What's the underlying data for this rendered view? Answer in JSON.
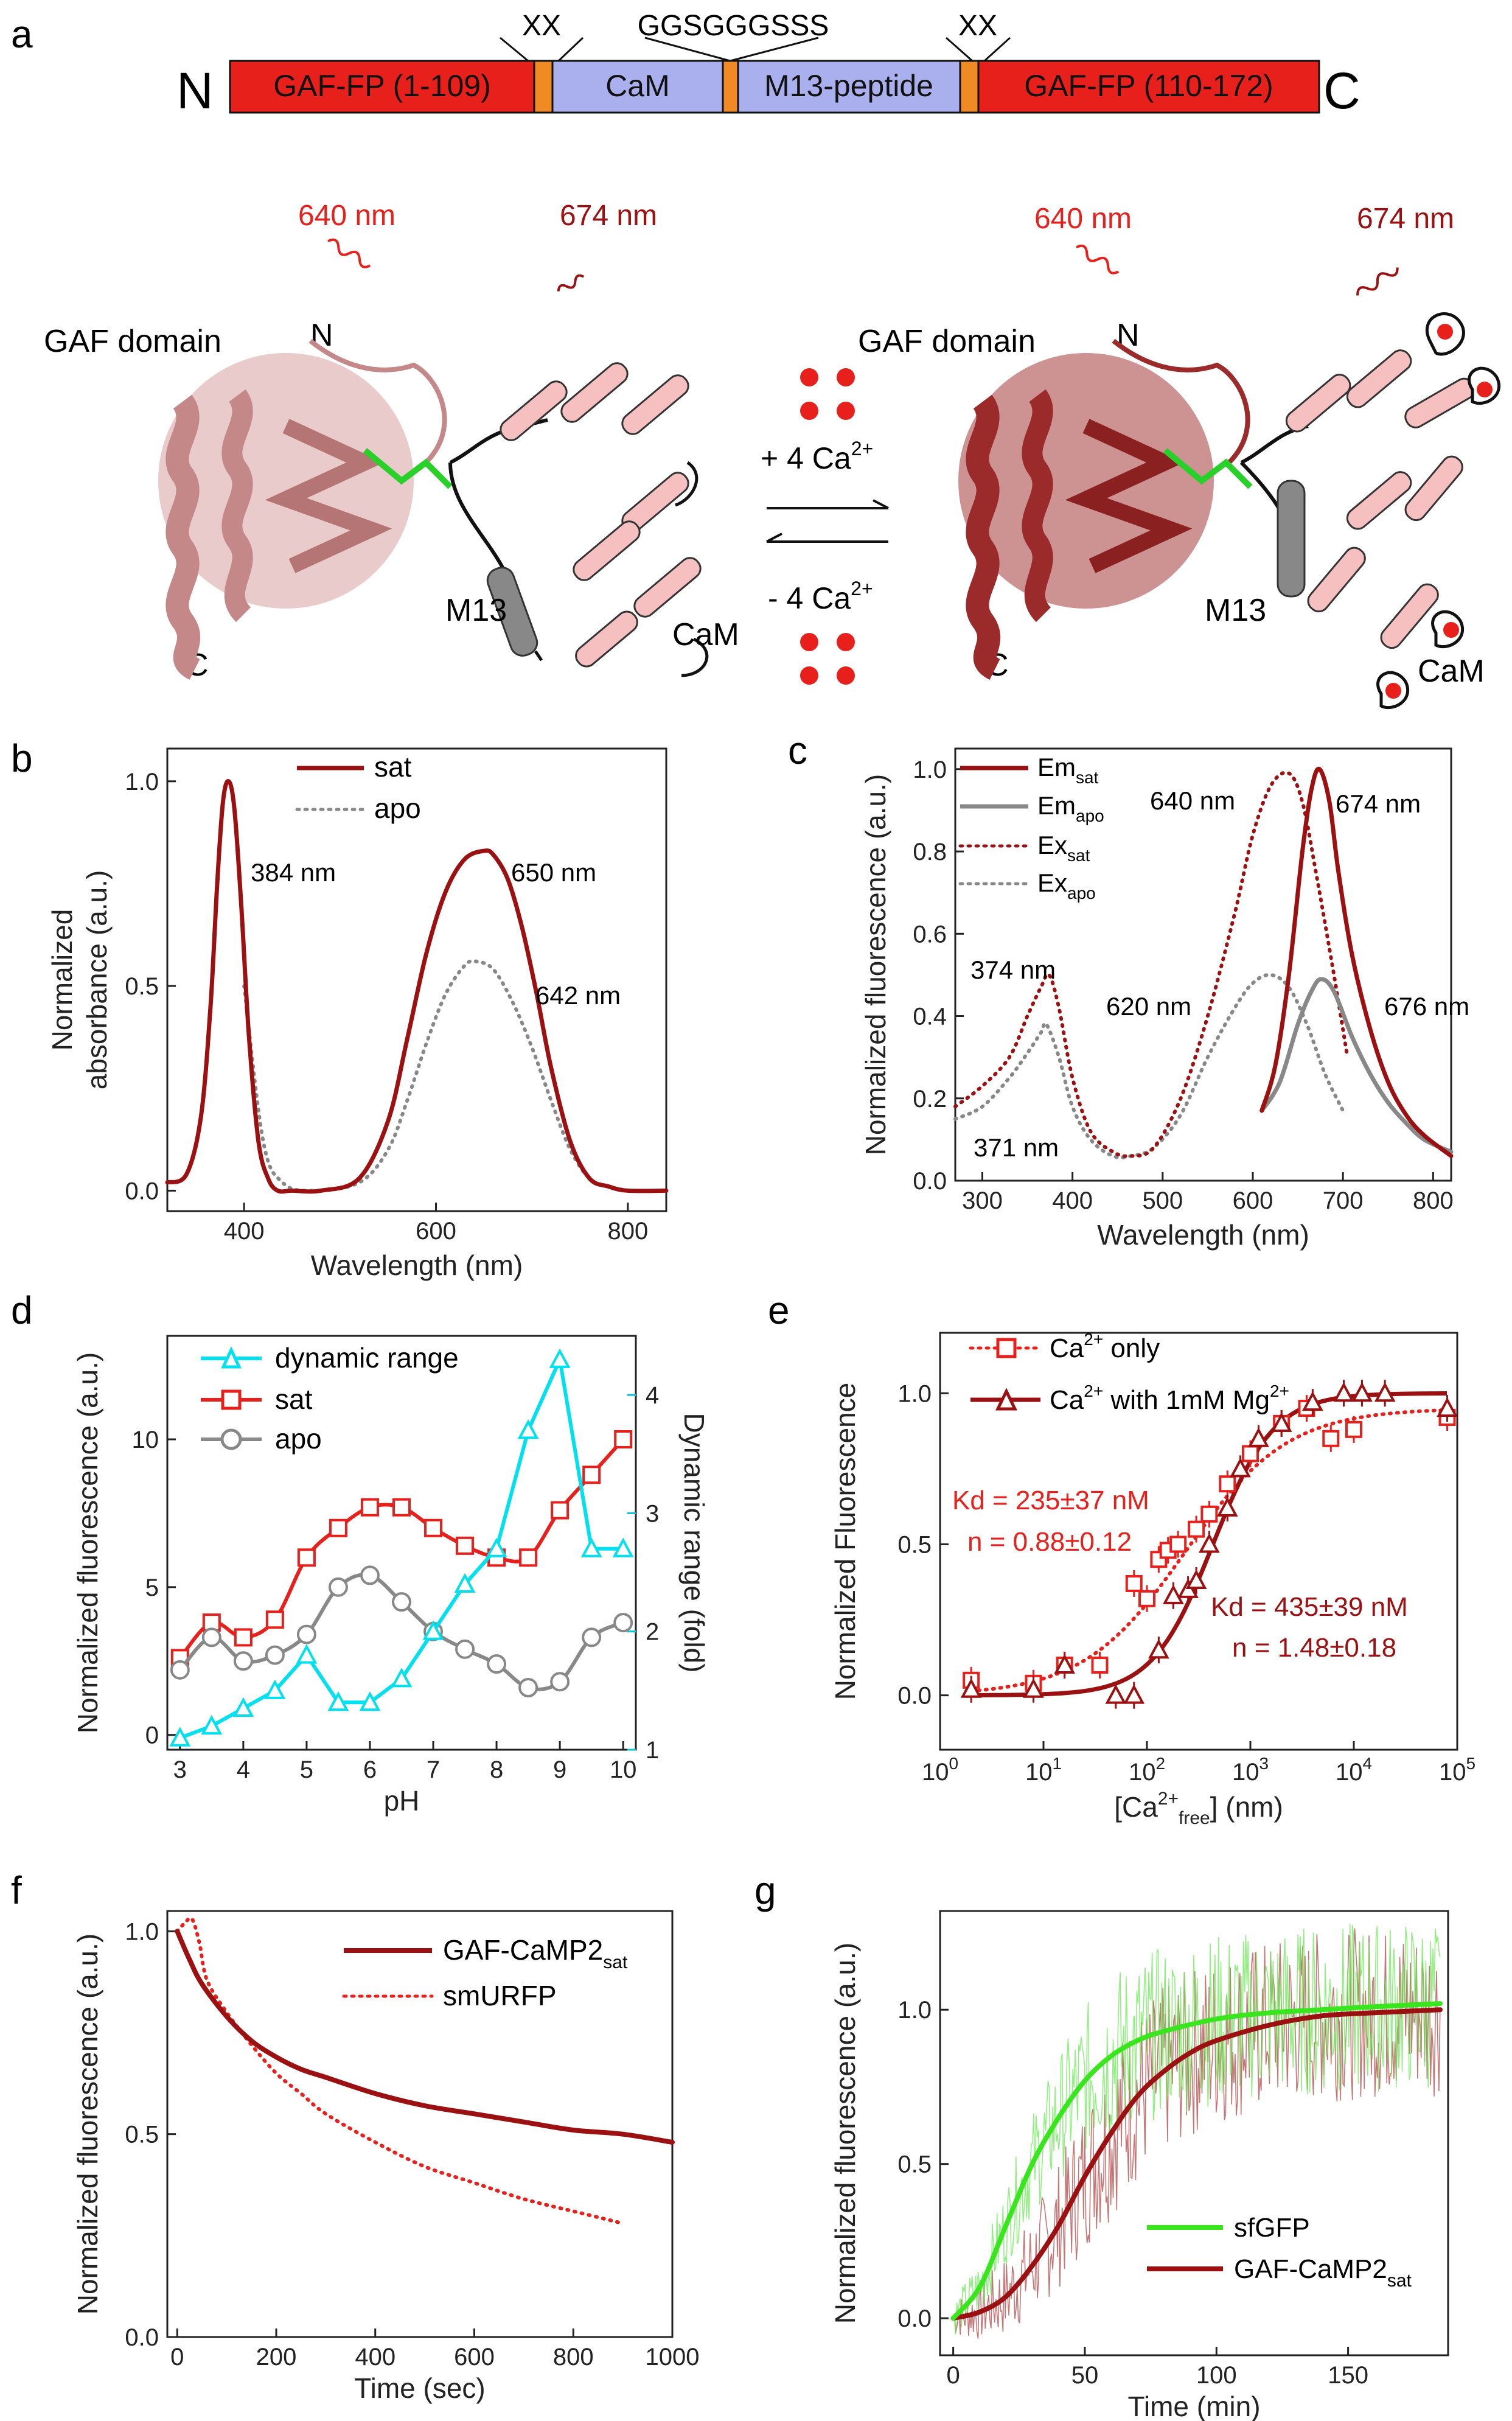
{
  "panel_labels": {
    "a": "a",
    "b": "b",
    "c": "c",
    "d": "d",
    "e": "e",
    "f": "f",
    "g": "g"
  },
  "construct": {
    "n_term": "N",
    "c_term": "C",
    "seg1": "GAF-FP (1-109)",
    "seg2": "CaM",
    "seg3": "M13-peptide",
    "seg4": "GAF-FP (110-172)",
    "linker_left": "XX",
    "linker_mid": "GGSGGGSSS",
    "linker_right": "XX"
  },
  "structure": {
    "exc_left": "640 nm",
    "em_left": "674 nm",
    "exc_right": "640 nm",
    "em_right": "674 nm",
    "gaf_left": "GAF domain",
    "gaf_right": "GAF domain",
    "n_left": "N",
    "n_right": "N",
    "c_left": "C",
    "c_right": "C",
    "m13_left": "M13",
    "m13_right": "M13",
    "cam_left": "CaM",
    "cam_right": "CaM",
    "plus_ca": "+ 4 Ca",
    "minus_ca": "- 4 Ca",
    "ca_sup": "2+"
  },
  "chart_data": [
    {
      "panel": "b",
      "type": "line",
      "xlabel": "Wavelength (nm)",
      "ylabel_line1": "Normalized",
      "ylabel_line2": "absorbance (a.u.)",
      "xlim": [
        320,
        840
      ],
      "ylim": [
        -0.05,
        1.08
      ],
      "xticks": [
        "400",
        "600",
        "800"
      ],
      "yticks": [
        "0.0",
        "0.5",
        "1.0"
      ],
      "legend": [
        "sat",
        "apo"
      ],
      "annotations": [
        "384 nm",
        "650 nm",
        "642 nm"
      ],
      "series": [
        {
          "name": "sat",
          "x": [
            320,
            340,
            355,
            365,
            372,
            378,
            384,
            390,
            397,
            405,
            415,
            425,
            435,
            450,
            480,
            520,
            550,
            570,
            590,
            610,
            630,
            650,
            660,
            675,
            690,
            705,
            720,
            740,
            760,
            780,
            800,
            840
          ],
          "y": [
            0.02,
            0.04,
            0.18,
            0.45,
            0.75,
            0.95,
            1.0,
            0.93,
            0.7,
            0.38,
            0.12,
            0.03,
            0.0,
            0.0,
            0.0,
            0.03,
            0.17,
            0.37,
            0.58,
            0.73,
            0.81,
            0.83,
            0.82,
            0.76,
            0.64,
            0.48,
            0.3,
            0.12,
            0.03,
            0.01,
            0.0,
            0.0
          ]
        },
        {
          "name": "apo",
          "x": [
            400,
            420,
            440,
            470,
            520,
            550,
            570,
            590,
            610,
            630,
            642,
            660,
            680,
            700,
            720,
            740,
            760,
            780,
            800
          ],
          "y": [
            0.5,
            0.12,
            0.02,
            0.0,
            0.02,
            0.1,
            0.22,
            0.36,
            0.48,
            0.55,
            0.56,
            0.54,
            0.46,
            0.35,
            0.22,
            0.1,
            0.03,
            0.01,
            0.0
          ]
        }
      ]
    },
    {
      "panel": "c",
      "type": "line",
      "xlabel": "Wavelength (nm)",
      "ylabel": "Normalized fluorescence (a.u.)",
      "xlim": [
        270,
        820
      ],
      "ylim": [
        0,
        1.05
      ],
      "xticks": [
        "300",
        "400",
        "500",
        "600",
        "700",
        "800"
      ],
      "yticks": [
        "0.0",
        "0.2",
        "0.4",
        "0.6",
        "0.8",
        "1.0"
      ],
      "legend": [
        "Em",
        "Em",
        "Ex",
        "Ex"
      ],
      "legend_subs": [
        "sat",
        "apo",
        "sat",
        "apo"
      ],
      "annotations": [
        "640 nm",
        "674 nm",
        "374 nm",
        "620 nm",
        "676 nm",
        "371 nm"
      ],
      "series": [
        {
          "name": "Em_sat",
          "x": [
            610,
            625,
            640,
            655,
            665,
            674,
            685,
            695,
            710,
            730,
            750,
            770,
            790,
            820
          ],
          "y": [
            0.17,
            0.28,
            0.5,
            0.8,
            0.95,
            1.0,
            0.92,
            0.75,
            0.55,
            0.37,
            0.24,
            0.16,
            0.11,
            0.06
          ]
        },
        {
          "name": "Em_apo",
          "x": [
            610,
            630,
            650,
            665,
            676,
            690,
            710,
            730,
            750,
            770,
            790,
            820
          ],
          "y": [
            0.17,
            0.24,
            0.38,
            0.46,
            0.49,
            0.46,
            0.35,
            0.26,
            0.19,
            0.14,
            0.1,
            0.07
          ]
        },
        {
          "name": "Ex_sat",
          "x": [
            270,
            300,
            330,
            350,
            365,
            374,
            385,
            400,
            420,
            445,
            465,
            490,
            520,
            550,
            580,
            600,
            620,
            640,
            655,
            670,
            690,
            705
          ],
          "y": [
            0.18,
            0.23,
            0.3,
            0.4,
            0.47,
            0.5,
            0.42,
            0.25,
            0.12,
            0.07,
            0.06,
            0.08,
            0.2,
            0.4,
            0.65,
            0.84,
            0.96,
            0.99,
            0.92,
            0.75,
            0.5,
            0.3
          ]
        },
        {
          "name": "Ex_apo",
          "x": [
            270,
            300,
            330,
            350,
            365,
            371,
            385,
            400,
            420,
            445,
            465,
            490,
            520,
            550,
            580,
            600,
            620,
            640,
            660,
            680,
            700
          ],
          "y": [
            0.15,
            0.18,
            0.25,
            0.31,
            0.36,
            0.38,
            0.3,
            0.18,
            0.1,
            0.06,
            0.06,
            0.08,
            0.16,
            0.3,
            0.42,
            0.48,
            0.5,
            0.47,
            0.38,
            0.26,
            0.17
          ]
        }
      ]
    },
    {
      "panel": "d",
      "type": "line",
      "xlabel": "pH",
      "ylabel": "Normalized fluorescence (a.u.)",
      "y2label": "Dynamic range (fold)",
      "xlim": [
        2.8,
        10.2
      ],
      "ylim": [
        -0.5,
        13.5
      ],
      "y2lim": [
        1,
        4.5
      ],
      "xticks": [
        "3",
        "4",
        "5",
        "6",
        "7",
        "8",
        "9",
        "10"
      ],
      "yticks": [
        "0",
        "5",
        "10"
      ],
      "y2ticks": [
        "1",
        "2",
        "3",
        "4"
      ],
      "legend": [
        "dynamic range",
        "sat",
        "apo"
      ],
      "x": [
        3,
        3.5,
        4,
        4.5,
        5,
        5.5,
        6,
        6.5,
        7,
        7.5,
        8,
        8.5,
        9,
        9.5,
        10
      ],
      "series": [
        {
          "name": "sat",
          "y": [
            2.6,
            3.8,
            3.3,
            3.9,
            6.0,
            7.0,
            7.7,
            7.7,
            7.0,
            6.4,
            6.0,
            6.0,
            7.6,
            8.8,
            10.0
          ]
        },
        {
          "name": "apo",
          "y": [
            2.2,
            3.3,
            2.5,
            2.7,
            3.4,
            5.0,
            5.4,
            4.5,
            3.5,
            2.9,
            2.4,
            1.6,
            1.8,
            3.3,
            3.8
          ]
        },
        {
          "name": "dynamic range",
          "y": [
            1.1,
            1.2,
            1.35,
            1.5,
            1.8,
            1.4,
            1.4,
            1.6,
            2.0,
            2.4,
            2.7,
            3.7,
            4.3,
            2.7,
            2.7
          ]
        }
      ]
    },
    {
      "panel": "e",
      "type": "scatter",
      "xlabel": "[Ca",
      "xlabel_sup": "2+",
      "xlabel_sub": "free",
      "xlabel_tail": "] (nm)",
      "ylabel": "Normalized Fluorescence",
      "xlim_log10": [
        0,
        5
      ],
      "ylim": [
        -0.18,
        1.2
      ],
      "xticks_exp": [
        "0",
        "1",
        "2",
        "3",
        "4",
        "5"
      ],
      "yticks": [
        "0.0",
        "0.5",
        "1.0"
      ],
      "legend": [
        "Ca",
        "Ca"
      ],
      "legend_tails": [
        " only",
        " with 1mM Mg"
      ],
      "kd_red": "Kd = 235±37 nM",
      "n_red": "n = 0.88±0.12",
      "kd_dark": "Kd = 435±39 nM",
      "n_dark": "n = 1.48±0.18",
      "series": [
        {
          "name": "Ca2+ only",
          "x": [
            2,
            8,
            16,
            35,
            75,
            100,
            130,
            160,
            200,
            300,
            400,
            600,
            1000,
            2000,
            3500,
            6000,
            10000,
            80000
          ],
          "y": [
            0.05,
            0.04,
            0.1,
            0.1,
            0.37,
            0.32,
            0.45,
            0.48,
            0.5,
            0.55,
            0.6,
            0.7,
            0.8,
            0.9,
            0.95,
            0.85,
            0.88,
            0.92
          ]
        },
        {
          "name": "Ca2+ with 1mM Mg2+",
          "x": [
            2,
            8,
            16,
            50,
            75,
            130,
            180,
            250,
            300,
            400,
            600,
            800,
            1200,
            2000,
            4000,
            8000,
            12000,
            20000,
            80000
          ],
          "y": [
            0.02,
            0.02,
            0.1,
            0.0,
            0.0,
            0.15,
            0.33,
            0.35,
            0.38,
            0.5,
            0.62,
            0.75,
            0.85,
            0.9,
            0.97,
            1.0,
            1.0,
            1.0,
            0.95
          ]
        }
      ]
    },
    {
      "panel": "f",
      "type": "line",
      "xlabel": "Time (sec)",
      "ylabel": "Normalized fluorescence (a.u.)",
      "xlim": [
        -20,
        1000
      ],
      "ylim": [
        0,
        1.05
      ],
      "xticks": [
        "0",
        "200",
        "400",
        "600",
        "800",
        "1000"
      ],
      "yticks": [
        "0.0",
        "0.5",
        "1.0"
      ],
      "legend": [
        "GAF-CaMP2",
        "smURFP"
      ],
      "legend_sub": "sat",
      "series": [
        {
          "name": "GAF-CaMP2sat",
          "x": [
            0,
            25,
            50,
            100,
            150,
            200,
            250,
            300,
            400,
            500,
            600,
            700,
            800,
            900,
            1000
          ],
          "y": [
            1.0,
            0.93,
            0.87,
            0.79,
            0.73,
            0.69,
            0.66,
            0.64,
            0.6,
            0.57,
            0.55,
            0.53,
            0.51,
            0.5,
            0.48
          ]
        },
        {
          "name": "smURFP",
          "x": [
            0,
            15,
            30,
            45,
            60,
            100,
            150,
            200,
            250,
            300,
            400,
            500,
            600,
            700,
            800,
            900
          ],
          "y": [
            1.0,
            1.02,
            1.03,
            0.97,
            0.88,
            0.8,
            0.72,
            0.65,
            0.6,
            0.55,
            0.48,
            0.42,
            0.38,
            0.34,
            0.31,
            0.28
          ]
        }
      ]
    },
    {
      "panel": "g",
      "type": "line",
      "xlabel": "Time (min)",
      "ylabel": "Normalized fluorescence (a.u.)",
      "xlim": [
        -5,
        188
      ],
      "ylim": [
        -0.12,
        1.32
      ],
      "xticks": [
        "0",
        "50",
        "100",
        "150"
      ],
      "yticks": [
        "0.0",
        "0.5",
        "1.0"
      ],
      "legend": [
        "sfGFP",
        "GAF-CaMP2"
      ],
      "legend_sub": "sat",
      "series": [
        {
          "name": "sfGFP",
          "x": [
            0,
            10,
            20,
            30,
            40,
            50,
            60,
            70,
            80,
            100,
            120,
            140,
            160,
            185
          ],
          "y": [
            0.0,
            0.1,
            0.3,
            0.5,
            0.65,
            0.77,
            0.85,
            0.9,
            0.93,
            0.97,
            0.99,
            1.0,
            1.01,
            1.02
          ]
        },
        {
          "name": "GAF-CaMP2sat",
          "x": [
            0,
            10,
            20,
            30,
            40,
            50,
            60,
            70,
            80,
            90,
            100,
            120,
            140,
            160,
            185
          ],
          "y": [
            0.0,
            0.02,
            0.07,
            0.17,
            0.3,
            0.46,
            0.6,
            0.72,
            0.8,
            0.86,
            0.9,
            0.95,
            0.98,
            0.99,
            1.0
          ]
        }
      ]
    }
  ],
  "colors": {
    "sat": "#9b1111",
    "apo": "#888888",
    "red": "#e8201c",
    "cyan": "#00e0ee",
    "green": "#39e61e",
    "lav": "#aab0ee",
    "orange": "#f08a24"
  }
}
